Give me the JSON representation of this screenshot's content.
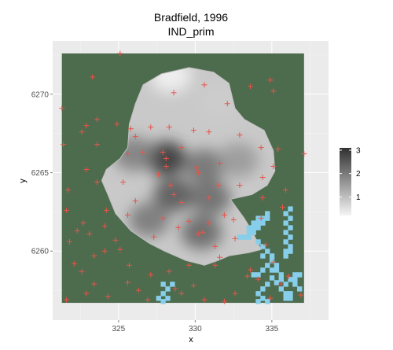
{
  "chart_data": {
    "type": "heatmap",
    "title": "Bradfield, 1996",
    "subtitle": "IND_prim",
    "xlabel": "x",
    "ylabel": "y",
    "xlim": [
      320.7,
      338.7
    ],
    "ylim": [
      6255.6,
      6273.4
    ],
    "x_ticks": [
      325,
      330,
      335
    ],
    "y_ticks": [
      6260,
      6265,
      6270
    ],
    "grid": true,
    "legend": {
      "placement": "right",
      "ticks": [
        1,
        2,
        3
      ],
      "range": [
        0.2,
        3.1
      ]
    },
    "colors": {
      "panel": "#ebebeb",
      "gridline": "#ffffff",
      "background_fill": "#4d6b4d",
      "water": "#87ceeb",
      "points": "#e6554a",
      "low": "#f5f5f5",
      "high": "#303030"
    },
    "background_extent": {
      "x": [
        321.3,
        337.1
      ],
      "y": [
        6256.7,
        6272.6
      ]
    },
    "surface_outline": [
      [
        326.6,
        6270.6
      ],
      [
        327.8,
        6271.3
      ],
      [
        329.6,
        6271.7
      ],
      [
        331.2,
        6271.4
      ],
      [
        332.2,
        6270.7
      ],
      [
        332.6,
        6269.1
      ],
      [
        333.2,
        6268.4
      ],
      [
        334.5,
        6267.7
      ],
      [
        335.1,
        6266.4
      ],
      [
        335.2,
        6265.1
      ],
      [
        334.7,
        6264.2
      ],
      [
        333.7,
        6263.6
      ],
      [
        332.3,
        6263.3
      ],
      [
        333.2,
        6262.1
      ],
      [
        333.7,
        6261.3
      ],
      [
        334.3,
        6260.1
      ],
      [
        333.5,
        6259.9
      ],
      [
        332.2,
        6259.7
      ],
      [
        331.5,
        6259.4
      ],
      [
        330.6,
        6259.1
      ],
      [
        329.4,
        6259.4
      ],
      [
        328.0,
        6260.0
      ],
      [
        327.0,
        6260.5
      ],
      [
        325.8,
        6261.3
      ],
      [
        324.8,
        6262.4
      ],
      [
        324.3,
        6263.6
      ],
      [
        323.9,
        6264.5
      ],
      [
        324.2,
        6265.2
      ],
      [
        325.1,
        6265.9
      ],
      [
        325.6,
        6266.6
      ],
      [
        325.7,
        6268.1
      ],
      [
        326.1,
        6269.4
      ]
    ],
    "surface_peaks": [
      {
        "x": 328.1,
        "y": 6265.9,
        "value": 3.1
      },
      {
        "x": 328.6,
        "y": 6263.6,
        "value": 2.6
      },
      {
        "x": 330.6,
        "y": 6265.4,
        "value": 2.2
      },
      {
        "x": 331.0,
        "y": 6263.4,
        "value": 2.3
      },
      {
        "x": 326.0,
        "y": 6266.2,
        "value": 2.0
      },
      {
        "x": 330.4,
        "y": 6261.2,
        "value": 2.4
      },
      {
        "x": 327.0,
        "y": 6262.0,
        "value": 2.1
      },
      {
        "x": 332.8,
        "y": 6265.8,
        "value": 1.6
      },
      {
        "x": 328.4,
        "y": 6271.2,
        "value": 0.2
      },
      {
        "x": 331.6,
        "y": 6269.6,
        "value": 0.8
      }
    ],
    "water_cells": [
      [
        332.9,
        6260.9
      ],
      [
        333.2,
        6260.9
      ],
      [
        333.5,
        6260.9
      ],
      [
        333.5,
        6261.2
      ],
      [
        333.8,
        6261.2
      ],
      [
        333.8,
        6261.5
      ],
      [
        334.1,
        6261.5
      ],
      [
        333.5,
        6261.5
      ],
      [
        334.1,
        6261.8
      ],
      [
        334.4,
        6261.8
      ],
      [
        333.8,
        6261.8
      ],
      [
        334.4,
        6262.1
      ],
      [
        334.7,
        6262.1
      ],
      [
        334.1,
        6262.1
      ],
      [
        334.7,
        6262.4
      ],
      [
        334.1,
        6260.6
      ],
      [
        334.4,
        6260.3
      ],
      [
        334.7,
        6260.0
      ],
      [
        334.4,
        6259.7
      ],
      [
        335.0,
        6259.7
      ],
      [
        335.0,
        6259.4
      ],
      [
        335.3,
        6259.1
      ],
      [
        335.3,
        6258.8
      ],
      [
        335.6,
        6258.5
      ],
      [
        335.6,
        6258.2
      ],
      [
        335.9,
        6257.9
      ],
      [
        335.6,
        6257.6
      ],
      [
        335.9,
        6257.3
      ],
      [
        336.2,
        6257.3
      ],
      [
        336.2,
        6257.0
      ],
      [
        335.9,
        6257.0
      ],
      [
        336.2,
        6258.2
      ],
      [
        336.5,
        6258.2
      ],
      [
        336.5,
        6258.5
      ],
      [
        336.8,
        6258.5
      ],
      [
        336.5,
        6257.9
      ],
      [
        336.8,
        6257.6
      ],
      [
        335.9,
        6259.7
      ],
      [
        335.9,
        6260.0
      ],
      [
        336.2,
        6260.0
      ],
      [
        336.2,
        6260.3
      ],
      [
        335.9,
        6260.6
      ],
      [
        336.2,
        6260.9
      ],
      [
        335.9,
        6261.2
      ],
      [
        336.2,
        6261.5
      ],
      [
        335.9,
        6261.8
      ],
      [
        336.2,
        6262.1
      ],
      [
        335.9,
        6262.4
      ],
      [
        336.2,
        6262.7
      ],
      [
        335.3,
        6258.0
      ],
      [
        335.0,
        6258.3
      ],
      [
        334.7,
        6257.9
      ],
      [
        334.4,
        6257.6
      ],
      [
        334.1,
        6257.3
      ],
      [
        334.4,
        6257.0
      ],
      [
        334.7,
        6256.8
      ],
      [
        334.1,
        6256.8
      ],
      [
        334.7,
        6259.1
      ],
      [
        335.0,
        6258.8
      ],
      [
        334.4,
        6258.8
      ],
      [
        333.8,
        6258.5
      ],
      [
        334.1,
        6258.5
      ],
      [
        327.9,
        6257.9
      ],
      [
        328.2,
        6257.6
      ],
      [
        327.9,
        6257.3
      ],
      [
        328.2,
        6257.0
      ],
      [
        327.9,
        6256.8
      ],
      [
        327.6,
        6257.0
      ],
      [
        328.5,
        6257.9
      ]
    ],
    "points": [
      [
        325.1,
        6272.6
      ],
      [
        323.3,
        6271.1
      ],
      [
        334.9,
        6270.9
      ],
      [
        333.6,
        6270.5
      ],
      [
        335.1,
        6270.2
      ],
      [
        328.6,
        6270.1
      ],
      [
        330.6,
        6270.6
      ],
      [
        332.1,
        6269.4
      ],
      [
        321.3,
        6269.1
      ],
      [
        323.6,
        6268.4
      ],
      [
        324.9,
        6268.1
      ],
      [
        322.9,
        6268.0
      ],
      [
        325.8,
        6267.8
      ],
      [
        327.1,
        6267.9
      ],
      [
        328.3,
        6267.9
      ],
      [
        329.9,
        6267.7
      ],
      [
        330.9,
        6267.6
      ],
      [
        322.6,
        6267.6
      ],
      [
        326.1,
        6267.3
      ],
      [
        332.9,
        6267.4
      ],
      [
        323.6,
        6266.8
      ],
      [
        321.4,
        6266.8
      ],
      [
        326.6,
        6266.3
      ],
      [
        327.9,
        6266.3
      ],
      [
        329.1,
        6266.6
      ],
      [
        325.6,
        6266.2
      ],
      [
        334.3,
        6266.6
      ],
      [
        335.4,
        6266.5
      ],
      [
        337.1,
        6266.2
      ],
      [
        328.1,
        6265.9
      ],
      [
        328.1,
        6265.4
      ],
      [
        330.1,
        6265.3
      ],
      [
        331.6,
        6265.6
      ],
      [
        322.9,
        6265.2
      ],
      [
        327.6,
        6264.9
      ],
      [
        330.2,
        6265.0
      ],
      [
        335.1,
        6265.4
      ],
      [
        334.4,
        6264.7
      ],
      [
        325.3,
        6264.4
      ],
      [
        323.6,
        6264.4
      ],
      [
        328.4,
        6264.2
      ],
      [
        331.5,
        6264.2
      ],
      [
        332.9,
        6264.2
      ],
      [
        335.9,
        6263.9
      ],
      [
        321.7,
        6263.9
      ],
      [
        328.6,
        6263.6
      ],
      [
        330.9,
        6263.4
      ],
      [
        334.4,
        6263.4
      ],
      [
        329.1,
        6263.1
      ],
      [
        326.1,
        6263.2
      ],
      [
        335.7,
        6262.8
      ],
      [
        324.2,
        6262.6
      ],
      [
        321.6,
        6262.6
      ],
      [
        325.6,
        6262.3
      ],
      [
        331.9,
        6262.3
      ],
      [
        334.3,
        6262.1
      ],
      [
        332.5,
        6262.0
      ],
      [
        327.9,
        6262.1
      ],
      [
        329.6,
        6261.9
      ],
      [
        330.9,
        6261.8
      ],
      [
        322.7,
        6261.8
      ],
      [
        324.1,
        6261.6
      ],
      [
        322.3,
        6261.3
      ],
      [
        328.9,
        6261.5
      ],
      [
        330.5,
        6261.2
      ],
      [
        330.2,
        6261.1
      ],
      [
        323.1,
        6261.1
      ],
      [
        324.8,
        6260.7
      ],
      [
        321.8,
        6260.6
      ],
      [
        327.3,
        6260.9
      ],
      [
        332.6,
        6260.8
      ],
      [
        331.3,
        6260.3
      ],
      [
        334.6,
        6260.4
      ],
      [
        325.1,
        6260.1
      ],
      [
        324.1,
        6260.0
      ],
      [
        323.4,
        6259.7
      ],
      [
        331.6,
        6259.6
      ],
      [
        322.1,
        6259.2
      ],
      [
        325.7,
        6259.1
      ],
      [
        329.6,
        6259.1
      ],
      [
        331.3,
        6259.1
      ],
      [
        335.1,
        6259.3
      ],
      [
        333.6,
        6258.8
      ],
      [
        322.6,
        6258.7
      ],
      [
        327.1,
        6258.5
      ],
      [
        328.3,
        6258.7
      ],
      [
        334.1,
        6258.2
      ],
      [
        333.4,
        6258.4
      ],
      [
        323.4,
        6257.9
      ],
      [
        325.6,
        6258.0
      ],
      [
        329.9,
        6257.8
      ],
      [
        335.6,
        6257.9
      ],
      [
        336.1,
        6258.4
      ],
      [
        326.3,
        6257.5
      ],
      [
        329.1,
        6257.3
      ],
      [
        322.9,
        6257.3
      ],
      [
        324.3,
        6257.1
      ],
      [
        330.6,
        6256.9
      ],
      [
        321.6,
        6256.9
      ],
      [
        332.6,
        6257.3
      ],
      [
        334.9,
        6257.0
      ],
      [
        336.9,
        6257.2
      ],
      [
        328.7,
        6257.6
      ],
      [
        331.9,
        6256.8
      ],
      [
        326.9,
        6256.9
      ]
    ]
  }
}
